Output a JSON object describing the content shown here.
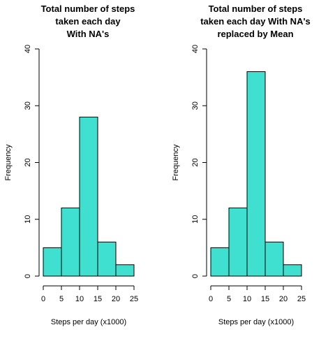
{
  "chart_data": [
    {
      "type": "bar",
      "title_lines": [
        "Total number of steps",
        "taken each day",
        "With NA's"
      ],
      "xlabel": "Steps per day (x1000)",
      "ylabel": "Frequency",
      "bin_edges": [
        0,
        5,
        10,
        15,
        20,
        25
      ],
      "values": [
        5,
        12,
        28,
        6,
        2
      ],
      "xlim": [
        0,
        25
      ],
      "ylim": [
        0,
        40
      ],
      "x_ticks": [
        0,
        5,
        10,
        15,
        20,
        25
      ],
      "y_ticks": [
        0,
        10,
        20,
        30,
        40
      ],
      "bar_color": "#40E0D0",
      "grid": false
    },
    {
      "type": "bar",
      "title_lines": [
        "Total number of steps",
        "taken each day With NA's",
        "replaced by Mean"
      ],
      "xlabel": "Steps per day (x1000)",
      "ylabel": "Frequency",
      "bin_edges": [
        0,
        5,
        10,
        15,
        20,
        25
      ],
      "values": [
        5,
        12,
        36,
        6,
        2
      ],
      "xlim": [
        0,
        25
      ],
      "ylim": [
        0,
        40
      ],
      "x_ticks": [
        0,
        5,
        10,
        15,
        20,
        25
      ],
      "y_ticks": [
        0,
        10,
        20,
        30,
        40
      ],
      "bar_color": "#40E0D0",
      "grid": false
    }
  ]
}
